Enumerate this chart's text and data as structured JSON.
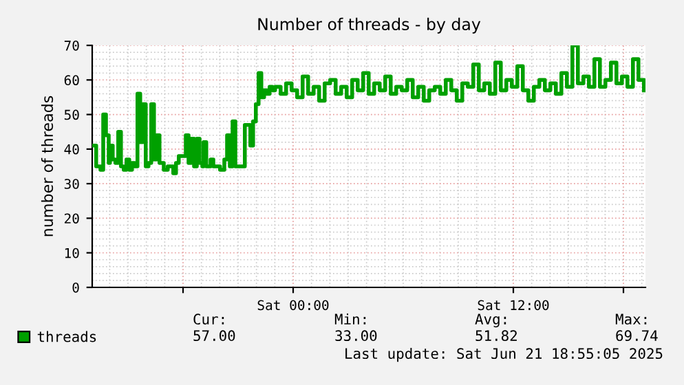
{
  "chart_data": {
    "type": "step",
    "title": "Number of threads - by day",
    "ylabel": "number of threads",
    "x": [
      "2025-06-20T13:03",
      "2025-06-20T13:16",
      "2025-06-20T13:30",
      "2025-06-20T13:39",
      "2025-06-20T13:48",
      "2025-06-20T13:57",
      "2025-06-20T14:01",
      "2025-06-20T14:10",
      "2025-06-20T14:19",
      "2025-06-20T14:28",
      "2025-06-20T14:37",
      "2025-06-20T14:46",
      "2025-06-20T14:55",
      "2025-06-20T15:04",
      "2025-06-20T15:13",
      "2025-06-20T15:22",
      "2025-06-20T15:31",
      "2025-06-20T15:40",
      "2025-06-20T15:49",
      "2025-06-20T15:58",
      "2025-06-20T16:07",
      "2025-06-20T16:16",
      "2025-06-20T16:25",
      "2025-06-20T16:34",
      "2025-06-20T16:43",
      "2025-06-20T16:57",
      "2025-06-20T17:10",
      "2025-06-20T17:28",
      "2025-06-20T17:37",
      "2025-06-20T17:46",
      "2025-06-20T18:00",
      "2025-06-20T18:09",
      "2025-06-20T18:18",
      "2025-06-20T18:27",
      "2025-06-20T18:36",
      "2025-06-20T18:45",
      "2025-06-20T18:54",
      "2025-06-20T19:03",
      "2025-06-20T19:07",
      "2025-06-20T19:16",
      "2025-06-20T19:30",
      "2025-06-20T19:39",
      "2025-06-20T19:48",
      "2025-06-20T20:01",
      "2025-06-20T20:15",
      "2025-06-20T20:24",
      "2025-06-20T20:33",
      "2025-06-20T20:42",
      "2025-06-20T20:51",
      "2025-06-20T21:04",
      "2025-06-20T21:13",
      "2025-06-20T21:22",
      "2025-06-20T21:31",
      "2025-06-20T21:40",
      "2025-06-20T21:49",
      "2025-06-20T21:58",
      "2025-06-20T22:07",
      "2025-06-20T22:16",
      "2025-06-20T22:25",
      "2025-06-20T22:34",
      "2025-06-20T22:43",
      "2025-06-20T22:52",
      "2025-06-20T23:01",
      "2025-06-20T23:19",
      "2025-06-20T23:37",
      "2025-06-20T23:55",
      "2025-06-21T00:13",
      "2025-06-21T00:31",
      "2025-06-21T00:49",
      "2025-06-21T01:07",
      "2025-06-21T01:25",
      "2025-06-21T01:43",
      "2025-06-21T02:01",
      "2025-06-21T02:19",
      "2025-06-21T02:37",
      "2025-06-21T02:55",
      "2025-06-21T03:13",
      "2025-06-21T03:31",
      "2025-06-21T03:49",
      "2025-06-21T04:07",
      "2025-06-21T04:25",
      "2025-06-21T04:43",
      "2025-06-21T05:01",
      "2025-06-21T05:19",
      "2025-06-21T05:37",
      "2025-06-21T05:55",
      "2025-06-21T06:13",
      "2025-06-21T06:31",
      "2025-06-21T06:49",
      "2025-06-21T07:07",
      "2025-06-21T07:25",
      "2025-06-21T07:43",
      "2025-06-21T08:01",
      "2025-06-21T08:19",
      "2025-06-21T08:37",
      "2025-06-21T08:55",
      "2025-06-21T09:13",
      "2025-06-21T09:31",
      "2025-06-21T09:49",
      "2025-06-21T10:07",
      "2025-06-21T10:25",
      "2025-06-21T10:43",
      "2025-06-21T11:01",
      "2025-06-21T11:19",
      "2025-06-21T11:37",
      "2025-06-21T11:55",
      "2025-06-21T12:13",
      "2025-06-21T12:31",
      "2025-06-21T12:49",
      "2025-06-21T13:07",
      "2025-06-21T13:25",
      "2025-06-21T13:43",
      "2025-06-21T14:01",
      "2025-06-21T14:19",
      "2025-06-21T14:37",
      "2025-06-21T14:55",
      "2025-06-21T15:13",
      "2025-06-21T15:31",
      "2025-06-21T15:49",
      "2025-06-21T16:07",
      "2025-06-21T16:25",
      "2025-06-21T16:43",
      "2025-06-21T17:01",
      "2025-06-21T17:19",
      "2025-06-21T17:37",
      "2025-06-21T17:55",
      "2025-06-21T18:13",
      "2025-06-21T18:31",
      "2025-06-21T18:49",
      "2025-06-21T19:07"
    ],
    "series": [
      {
        "name": "threads",
        "color": "#00a000",
        "values": [
          41,
          35,
          34,
          50,
          44,
          36,
          41,
          37,
          36,
          45,
          35,
          34,
          37,
          34,
          36,
          35,
          56,
          42,
          53,
          35,
          36,
          53,
          37,
          44,
          36,
          34,
          35,
          33,
          36,
          38,
          38,
          44,
          36,
          43,
          35,
          43,
          36,
          35,
          42,
          35,
          37,
          35,
          35,
          34,
          37,
          44,
          35,
          48,
          35,
          35,
          35,
          47,
          47,
          41,
          48,
          53,
          62,
          55,
          57,
          56,
          58,
          57,
          58,
          56,
          59,
          57,
          55,
          61,
          56,
          58,
          54,
          59,
          60,
          56,
          58,
          55,
          60,
          57,
          62,
          56,
          59,
          57,
          61,
          56,
          58,
          57,
          60,
          55,
          58,
          54,
          57,
          58,
          56,
          60,
          57,
          54,
          59,
          58,
          64.5,
          57,
          59,
          56,
          65,
          57,
          60,
          58,
          64,
          57,
          54,
          58,
          60,
          57,
          59,
          56,
          62,
          58,
          70,
          59,
          61,
          58,
          66,
          58,
          60,
          65,
          59,
          61,
          58,
          66,
          60,
          57
        ]
      }
    ],
    "xlim": [
      "2025-06-20T13:03",
      "2025-06-21T19:12"
    ],
    "ylim": [
      0,
      70
    ],
    "xticks": [
      {
        "value": "2025-06-20T18:00",
        "label": null
      },
      {
        "value": "2025-06-21T00:00",
        "label": "Sat 00:00"
      },
      {
        "value": "2025-06-21T12:00",
        "label": "Sat 12:00"
      },
      {
        "value": "2025-06-21T18:00",
        "label": null
      }
    ],
    "yticks": [
      0,
      10,
      20,
      30,
      40,
      50,
      60,
      70
    ],
    "grid": true,
    "legend": "bottom left",
    "annotations": [
      "Cur:",
      "Min:",
      "Avg:",
      "Max:",
      "57.00",
      "33.00",
      "51.82",
      "69.74",
      "Last update: Sat Jun 21 18:55:05 2025"
    ]
  }
}
